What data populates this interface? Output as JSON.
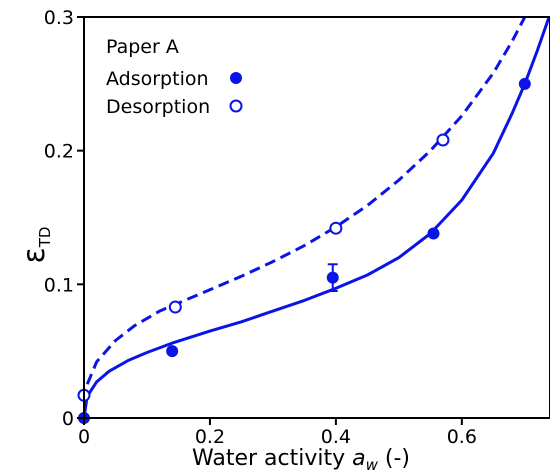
{
  "chart_data": {
    "type": "scatter",
    "colors": {
      "series": "#0a14e6",
      "axis": "#000000"
    },
    "xlim": [
      0,
      0.74
    ],
    "ylim": [
      0,
      0.3
    ],
    "x_ticks": [
      0,
      0.2,
      0.4,
      0.6
    ],
    "x_tick_labels": [
      "0",
      "0.2",
      "0.4",
      "0.6"
    ],
    "y_ticks": [
      0,
      0.1,
      0.2,
      0.3
    ],
    "y_tick_labels": [
      "0",
      "0.1",
      "0.2",
      "0.3"
    ],
    "xlabel_prefix": "Water activity ",
    "xlabel_var": "a",
    "xlabel_sub": "w",
    "xlabel_suffix": " (-)",
    "ylabel_main": "ε",
    "ylabel_sub": "TD",
    "grid": false,
    "legend": {
      "placement": "top-left",
      "title": "Paper A"
    },
    "series": [
      {
        "name": "Adsorption",
        "marker": "filled-circle",
        "points": [
          {
            "x": 0.0,
            "y": 0.0
          },
          {
            "x": 0.14,
            "y": 0.05
          },
          {
            "x": 0.395,
            "y": 0.105,
            "yerr": 0.01
          },
          {
            "x": 0.555,
            "y": 0.138
          },
          {
            "x": 0.7,
            "y": 0.25
          }
        ],
        "fit_line": "solid",
        "fit_curve": [
          [
            0.0,
            0.0
          ],
          [
            0.005,
            0.016
          ],
          [
            0.02,
            0.027
          ],
          [
            0.04,
            0.035
          ],
          [
            0.07,
            0.043
          ],
          [
            0.1,
            0.049
          ],
          [
            0.14,
            0.056
          ],
          [
            0.2,
            0.065
          ],
          [
            0.25,
            0.072
          ],
          [
            0.3,
            0.08
          ],
          [
            0.35,
            0.088
          ],
          [
            0.4,
            0.097
          ],
          [
            0.45,
            0.107
          ],
          [
            0.5,
            0.12
          ],
          [
            0.55,
            0.138
          ],
          [
            0.6,
            0.163
          ],
          [
            0.65,
            0.198
          ],
          [
            0.68,
            0.228
          ],
          [
            0.7,
            0.25
          ],
          [
            0.72,
            0.275
          ],
          [
            0.74,
            0.302
          ]
        ]
      },
      {
        "name": "Desorption",
        "marker": "open-circle",
        "points": [
          {
            "x": 0.0,
            "y": 0.017
          },
          {
            "x": 0.145,
            "y": 0.083
          },
          {
            "x": 0.4,
            "y": 0.142
          },
          {
            "x": 0.57,
            "y": 0.208
          }
        ],
        "fit_line": "dashed",
        "fit_curve": [
          [
            0.0,
            0.0
          ],
          [
            0.005,
            0.025
          ],
          [
            0.02,
            0.042
          ],
          [
            0.05,
            0.058
          ],
          [
            0.08,
            0.069
          ],
          [
            0.12,
            0.08
          ],
          [
            0.16,
            0.088
          ],
          [
            0.2,
            0.096
          ],
          [
            0.25,
            0.106
          ],
          [
            0.3,
            0.117
          ],
          [
            0.35,
            0.129
          ],
          [
            0.4,
            0.143
          ],
          [
            0.45,
            0.159
          ],
          [
            0.5,
            0.178
          ],
          [
            0.55,
            0.2
          ],
          [
            0.6,
            0.226
          ],
          [
            0.65,
            0.258
          ],
          [
            0.68,
            0.282
          ],
          [
            0.7,
            0.3
          ]
        ]
      }
    ]
  }
}
